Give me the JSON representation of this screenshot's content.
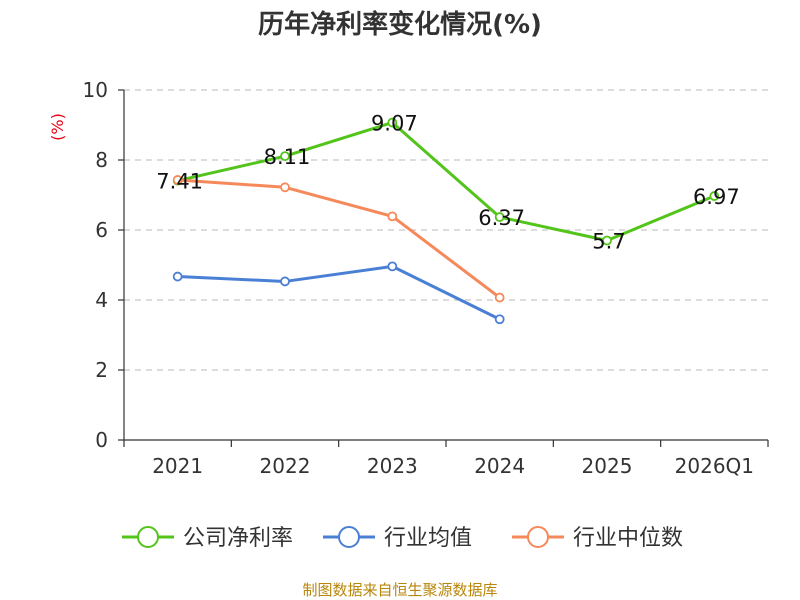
{
  "title": "历年净利率变化情况(%)",
  "unit_label": "(%)",
  "source": "制图数据来自恒生聚源数据库",
  "chart_data": {
    "type": "line",
    "title": "历年净利率变化情况(%)",
    "ylabel": "(%)",
    "xlabel": "",
    "categories": [
      "2021",
      "2022",
      "2023",
      "2024",
      "2025",
      "2026Q1"
    ],
    "ylim": [
      0,
      10
    ],
    "yticks": [
      0,
      2,
      4,
      6,
      8,
      10
    ],
    "grid": "horizontal dashed",
    "legend_position": "bottom",
    "series": [
      {
        "name": "公司净利率",
        "color": "#52c41a",
        "values": [
          7.41,
          8.11,
          9.07,
          6.37,
          5.7,
          6.97
        ],
        "labels": [
          "7.41",
          "8.11",
          "9.07",
          "6.37",
          "5.7",
          "6.97"
        ]
      },
      {
        "name": "行业均值",
        "color": "#4a7fd6",
        "values": [
          4.67,
          4.53,
          4.96,
          3.45,
          null,
          null
        ]
      },
      {
        "name": "行业中位数",
        "color": "#f5895a",
        "values": [
          7.43,
          7.22,
          6.39,
          4.07,
          null,
          null
        ]
      }
    ]
  }
}
